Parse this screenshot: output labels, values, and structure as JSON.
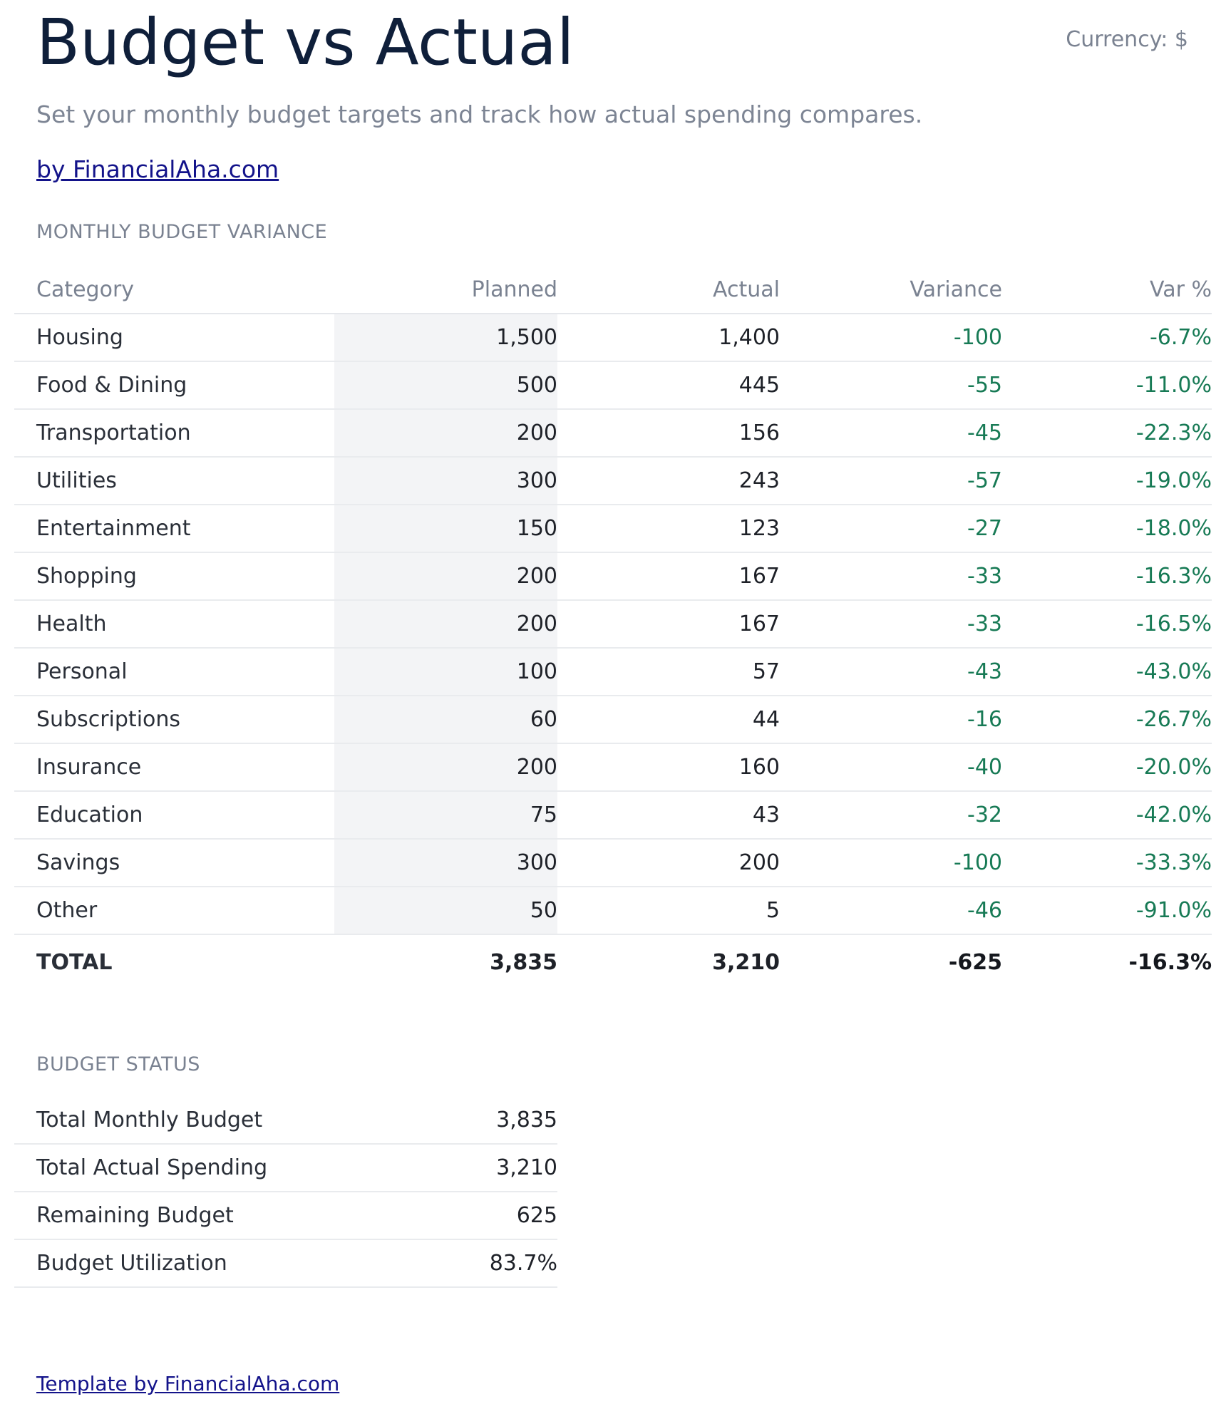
{
  "header": {
    "title": "Budget vs Actual",
    "currency": "Currency: $",
    "subtitle": "Set your monthly budget targets and track how actual spending compares.",
    "byline": "by FinancialAha.com"
  },
  "variance": {
    "section_label": "MONTHLY BUDGET VARIANCE",
    "columns": {
      "category": "Category",
      "planned": "Planned",
      "actual": "Actual",
      "variance": "Variance",
      "var_pct": "Var %"
    },
    "rows": [
      {
        "category": "Housing",
        "planned": "1,500",
        "actual": "1,400",
        "variance": "-100",
        "var_pct": "-6.7%"
      },
      {
        "category": "Food & Dining",
        "planned": "500",
        "actual": "445",
        "variance": "-55",
        "var_pct": "-11.0%"
      },
      {
        "category": "Transportation",
        "planned": "200",
        "actual": "156",
        "variance": "-45",
        "var_pct": "-22.3%"
      },
      {
        "category": "Utilities",
        "planned": "300",
        "actual": "243",
        "variance": "-57",
        "var_pct": "-19.0%"
      },
      {
        "category": "Entertainment",
        "planned": "150",
        "actual": "123",
        "variance": "-27",
        "var_pct": "-18.0%"
      },
      {
        "category": "Shopping",
        "planned": "200",
        "actual": "167",
        "variance": "-33",
        "var_pct": "-16.3%"
      },
      {
        "category": "Health",
        "planned": "200",
        "actual": "167",
        "variance": "-33",
        "var_pct": "-16.5%"
      },
      {
        "category": "Personal",
        "planned": "100",
        "actual": "57",
        "variance": "-43",
        "var_pct": "-43.0%"
      },
      {
        "category": "Subscriptions",
        "planned": "60",
        "actual": "44",
        "variance": "-16",
        "var_pct": "-26.7%"
      },
      {
        "category": "Insurance",
        "planned": "200",
        "actual": "160",
        "variance": "-40",
        "var_pct": "-20.0%"
      },
      {
        "category": "Education",
        "planned": "75",
        "actual": "43",
        "variance": "-32",
        "var_pct": "-42.0%"
      },
      {
        "category": "Savings",
        "planned": "300",
        "actual": "200",
        "variance": "-100",
        "var_pct": "-33.3%"
      },
      {
        "category": "Other",
        "planned": "50",
        "actual": "5",
        "variance": "-46",
        "var_pct": "-91.0%"
      }
    ],
    "total": {
      "category": "TOTAL",
      "planned": "3,835",
      "actual": "3,210",
      "variance": "-625",
      "var_pct": "-16.3%"
    }
  },
  "status": {
    "section_label": "BUDGET STATUS",
    "rows": [
      {
        "label": "Total Monthly Budget",
        "value": "3,835"
      },
      {
        "label": "Total Actual Spending",
        "value": "3,210"
      },
      {
        "label": "Remaining Budget",
        "value": "625"
      },
      {
        "label": "Budget Utilization",
        "value": "83.7%"
      }
    ]
  },
  "footer": {
    "link": "Template by FinancialAha.com"
  },
  "colors": {
    "title": "#0f1f3a",
    "muted": "#7a8291",
    "link": "#13138a",
    "positive_variance": "#177a55",
    "planned_column_bg": "#f3f4f6"
  }
}
